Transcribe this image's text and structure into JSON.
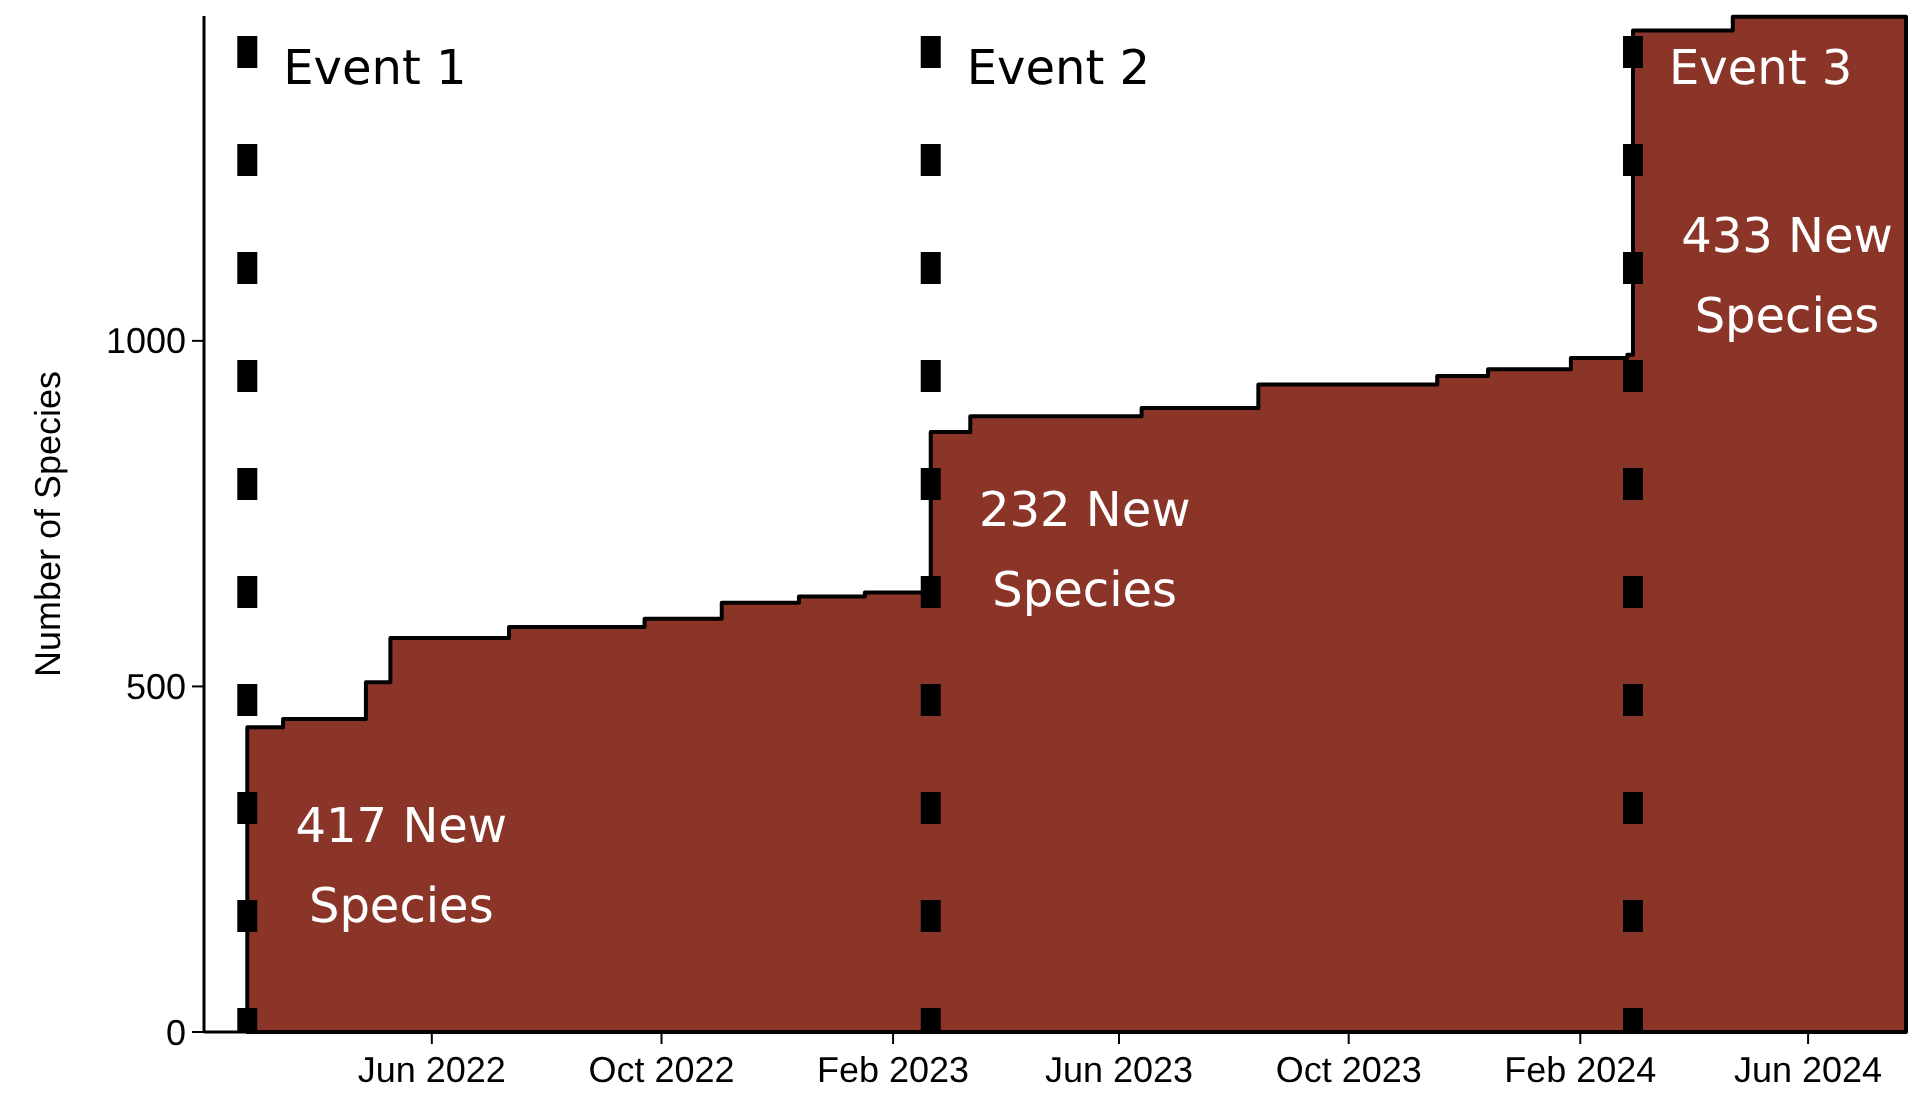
{
  "chart_data": {
    "type": "area",
    "ylabel": "Number of Species",
    "x": [
      "2022-02-23",
      "2022-03-14",
      "2022-04-27",
      "2022-05-10",
      "2022-07-12",
      "2022-09-22",
      "2022-11-02",
      "2022-12-13",
      "2023-01-17",
      "2023-02-21",
      "2023-03-14",
      "2023-06-13",
      "2023-08-14",
      "2023-11-17",
      "2023-12-14",
      "2024-01-27",
      "2024-02-26",
      "2024-02-29",
      "2024-04-22",
      "2024-07-23"
    ],
    "series": [
      {
        "color": "#8b3528",
        "values": [
          441,
          453,
          506,
          570,
          586,
          598,
          621,
          630,
          636,
          868,
          891,
          903,
          937,
          949,
          959,
          975,
          980,
          1449,
          1469,
          1469
        ]
      }
    ],
    "xlim": [
      "2022-01-31",
      "2024-07-23"
    ],
    "xticks": [
      {
        "value": "2022-06-01",
        "label": "Jun 2022"
      },
      {
        "value": "2022-10-01",
        "label": "Oct 2022"
      },
      {
        "value": "2023-02-01",
        "label": "Feb 2023"
      },
      {
        "value": "2023-06-01",
        "label": "Jun 2023"
      },
      {
        "value": "2023-10-01",
        "label": "Oct 2023"
      },
      {
        "value": "2024-02-01",
        "label": "Feb 2024"
      },
      {
        "value": "2024-06-01",
        "label": "Jun 2024"
      }
    ],
    "ylim": [
      0,
      1470
    ],
    "yticks": [
      0,
      500,
      1000
    ],
    "grid": false,
    "ref_lines": [
      {
        "axis": "x",
        "value": "2022-02-23",
        "label": "Event 1",
        "color": "#000000",
        "line_style": "dashed"
      },
      {
        "axis": "x",
        "value": "2023-02-21",
        "label": "Event 2",
        "color": "#000000",
        "line_style": "dashed"
      },
      {
        "axis": "x",
        "value": "2024-02-29",
        "label": "Event 3",
        "color": "#000000",
        "line_style": "dashed"
      }
    ],
    "annotations": [
      "417 New Species",
      "232 New Species",
      "433 New Species"
    ]
  }
}
